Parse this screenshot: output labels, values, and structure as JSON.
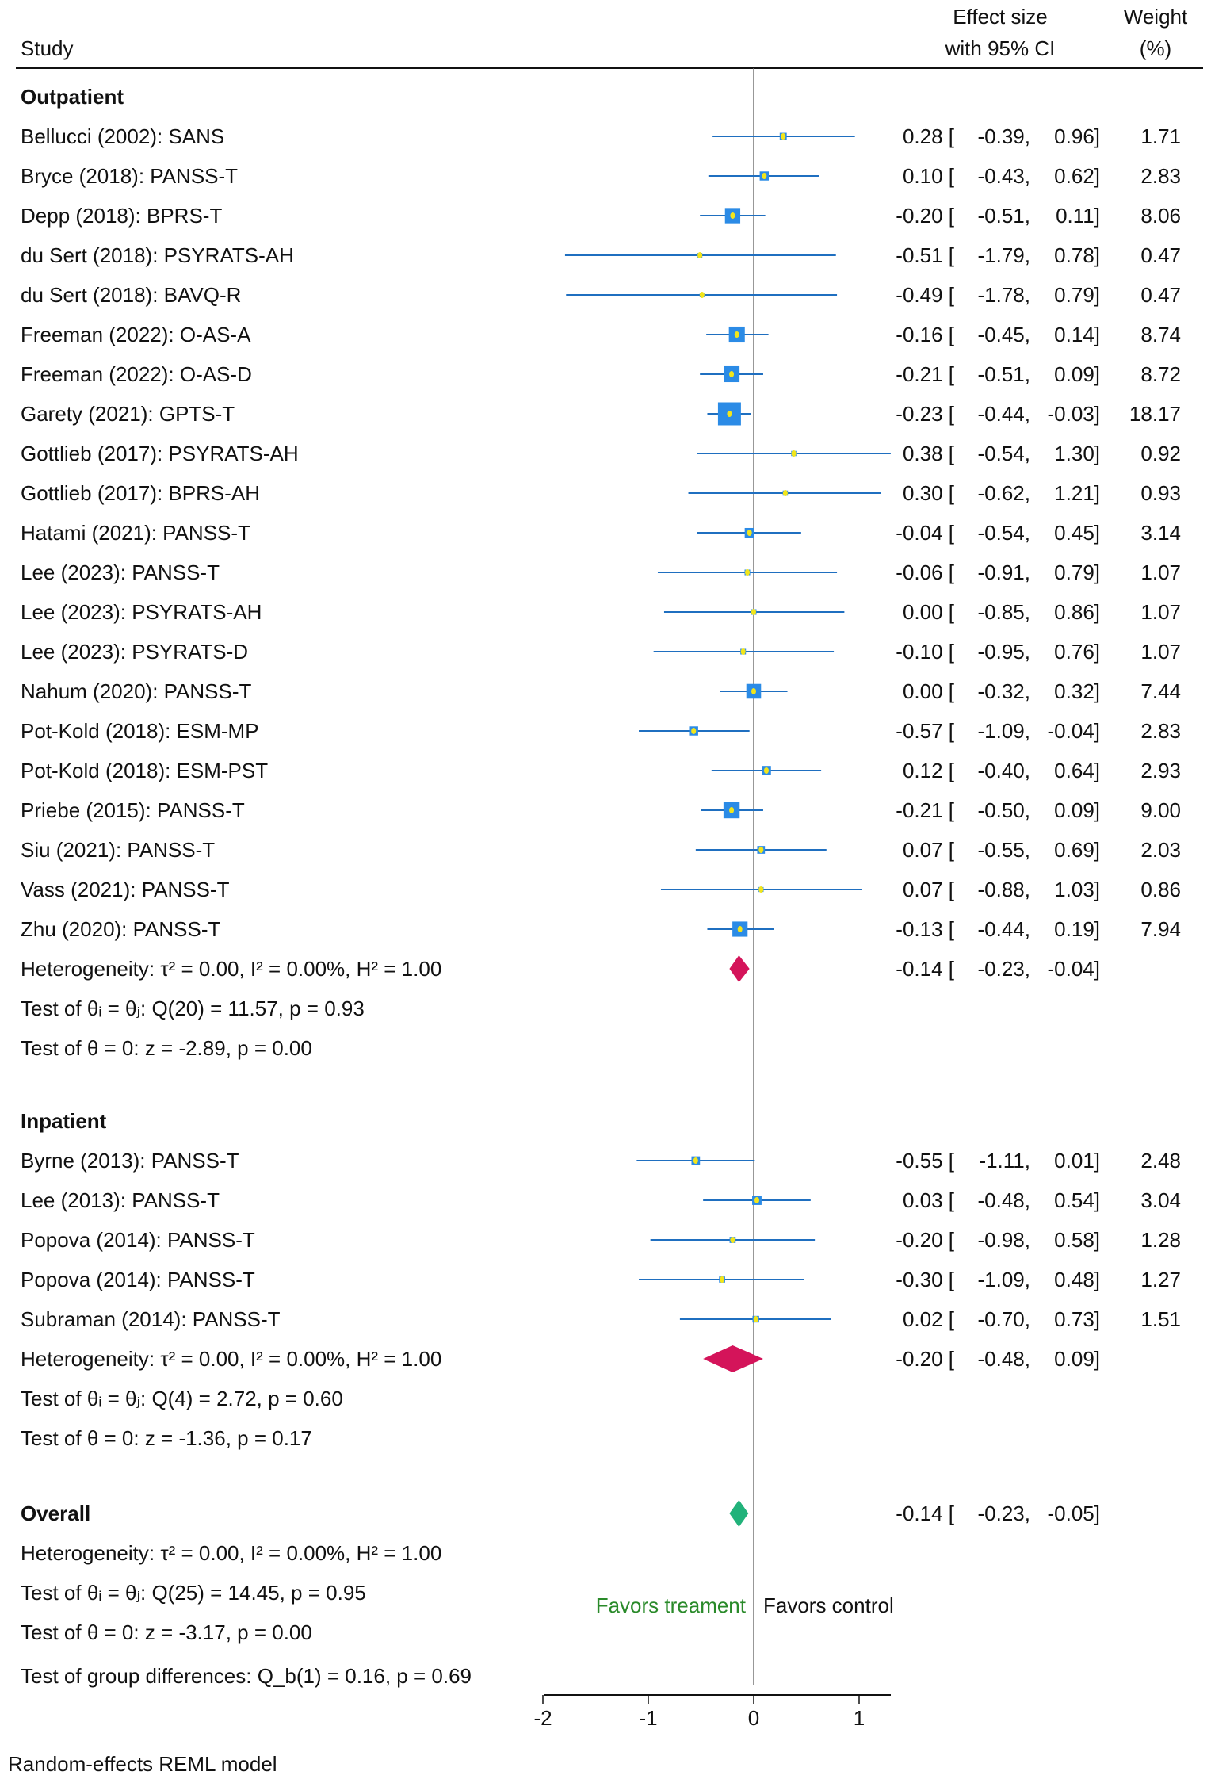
{
  "chart_data": {
    "type": "forest",
    "header": {
      "study": "Study",
      "effect_line1": "Effect size",
      "effect_line2": "with 95% CI",
      "weight_line1": "Weight",
      "weight_line2": "(%)"
    },
    "xlim": [
      -2,
      1.3
    ],
    "xticks": [
      "-2",
      "-1",
      "0",
      "1"
    ],
    "xtick_values": [
      -2,
      -1,
      0,
      1
    ],
    "favors_left": "Favors treament",
    "favors_right": "Favors control",
    "footer": "Random-effects REML model",
    "group_test": "Test of group differences: Q_b(1) = 0.16, p = 0.69",
    "colors": {
      "ci_line": "#1f6fc0",
      "box": "#2b8be6",
      "dot": "#f2e51b",
      "subgroup_diamond": "#d4145a",
      "overall_diamond": "#21b27a",
      "favors_left": "#2a8a2a"
    },
    "groups": [
      {
        "name": "Outpatient",
        "studies": [
          {
            "label": "Bellucci (2002): SANS",
            "es": "0.28",
            "lo": "-0.39",
            "hi": "0.96",
            "w": "1.71"
          },
          {
            "label": "Bryce (2018): PANSS-T",
            "es": "0.10",
            "lo": "-0.43",
            "hi": "0.62",
            "w": "2.83"
          },
          {
            "label": "Depp (2018): BPRS-T",
            "es": "-0.20",
            "lo": "-0.51",
            "hi": "0.11",
            "w": "8.06"
          },
          {
            "label": "du Sert (2018): PSYRATS-AH",
            "es": "-0.51",
            "lo": "-1.79",
            "hi": "0.78",
            "w": "0.47"
          },
          {
            "label": "du Sert (2018): BAVQ-R",
            "es": "-0.49",
            "lo": "-1.78",
            "hi": "0.79",
            "w": "0.47"
          },
          {
            "label": "Freeman (2022): O-AS-A",
            "es": "-0.16",
            "lo": "-0.45",
            "hi": "0.14",
            "w": "8.74"
          },
          {
            "label": "Freeman (2022): O-AS-D",
            "es": "-0.21",
            "lo": "-0.51",
            "hi": "0.09",
            "w": "8.72"
          },
          {
            "label": "Garety (2021): GPTS-T",
            "es": "-0.23",
            "lo": "-0.44",
            "hi": "-0.03",
            "w": "18.17"
          },
          {
            "label": "Gottlieb (2017): PSYRATS-AH",
            "es": "0.38",
            "lo": "-0.54",
            "hi": "1.30",
            "w": "0.92"
          },
          {
            "label": "Gottlieb (2017): BPRS-AH",
            "es": "0.30",
            "lo": "-0.62",
            "hi": "1.21",
            "w": "0.93"
          },
          {
            "label": "Hatami (2021): PANSS-T",
            "es": "-0.04",
            "lo": "-0.54",
            "hi": "0.45",
            "w": "3.14"
          },
          {
            "label": "Lee (2023): PANSS-T",
            "es": "-0.06",
            "lo": "-0.91",
            "hi": "0.79",
            "w": "1.07"
          },
          {
            "label": "Lee (2023): PSYRATS-AH",
            "es": "0.00",
            "lo": "-0.85",
            "hi": "0.86",
            "w": "1.07"
          },
          {
            "label": "Lee (2023): PSYRATS-D",
            "es": "-0.10",
            "lo": "-0.95",
            "hi": "0.76",
            "w": "1.07"
          },
          {
            "label": "Nahum (2020): PANSS-T",
            "es": "0.00",
            "lo": "-0.32",
            "hi": "0.32",
            "w": "7.44"
          },
          {
            "label": "Pot-Kold (2018): ESM-MP",
            "es": "-0.57",
            "lo": "-1.09",
            "hi": "-0.04",
            "w": "2.83"
          },
          {
            "label": "Pot-Kold (2018): ESM-PST",
            "es": "0.12",
            "lo": "-0.40",
            "hi": "0.64",
            "w": "2.93"
          },
          {
            "label": "Priebe (2015): PANSS-T",
            "es": "-0.21",
            "lo": "-0.50",
            "hi": "0.09",
            "w": "9.00"
          },
          {
            "label": "Siu (2021): PANSS-T",
            "es": "0.07",
            "lo": "-0.55",
            "hi": "0.69",
            "w": "2.03"
          },
          {
            "label": "Vass (2021): PANSS-T",
            "es": "0.07",
            "lo": "-0.88",
            "hi": "1.03",
            "w": "0.86"
          },
          {
            "label": "Zhu (2020): PANSS-T",
            "es": "-0.13",
            "lo": "-0.44",
            "hi": "0.19",
            "w": "7.94"
          }
        ],
        "pooled": {
          "es": "-0.14",
          "lo": "-0.23",
          "hi": "-0.04"
        },
        "stats": [
          "Heterogeneity: τ² = 0.00, I² = 0.00%, H² = 1.00",
          "Test of θᵢ = θⱼ: Q(20) = 11.57, p = 0.93",
          "Test of θ = 0: z = -2.89, p = 0.00"
        ]
      },
      {
        "name": "Inpatient",
        "studies": [
          {
            "label": "Byrne (2013): PANSS-T",
            "es": "-0.55",
            "lo": "-1.11",
            "hi": "0.01",
            "w": "2.48"
          },
          {
            "label": "Lee (2013): PANSS-T",
            "es": "0.03",
            "lo": "-0.48",
            "hi": "0.54",
            "w": "3.04"
          },
          {
            "label": "Popova (2014): PANSS-T",
            "es": "-0.20",
            "lo": "-0.98",
            "hi": "0.58",
            "w": "1.28"
          },
          {
            "label": "Popova (2014): PANSS-T",
            "es": "-0.30",
            "lo": "-1.09",
            "hi": "0.48",
            "w": "1.27"
          },
          {
            "label": "Subraman (2014): PANSS-T",
            "es": "0.02",
            "lo": "-0.70",
            "hi": "0.73",
            "w": "1.51"
          }
        ],
        "pooled": {
          "es": "-0.20",
          "lo": "-0.48",
          "hi": "0.09"
        },
        "stats": [
          "Heterogeneity: τ² = 0.00, I² = 0.00%, H² = 1.00",
          "Test of θᵢ = θⱼ: Q(4) = 2.72, p = 0.60",
          "Test of θ = 0: z = -1.36, p = 0.17"
        ]
      }
    ],
    "overall": {
      "name": "Overall",
      "pooled": {
        "es": "-0.14",
        "lo": "-0.23",
        "hi": "-0.05"
      },
      "stats": [
        "Heterogeneity: τ² = 0.00, I² = 0.00%, H² = 1.00",
        "Test of θᵢ = θⱼ: Q(25) = 14.45, p = 0.95",
        "Test of θ = 0: z = -3.17, p = 0.00"
      ]
    }
  }
}
